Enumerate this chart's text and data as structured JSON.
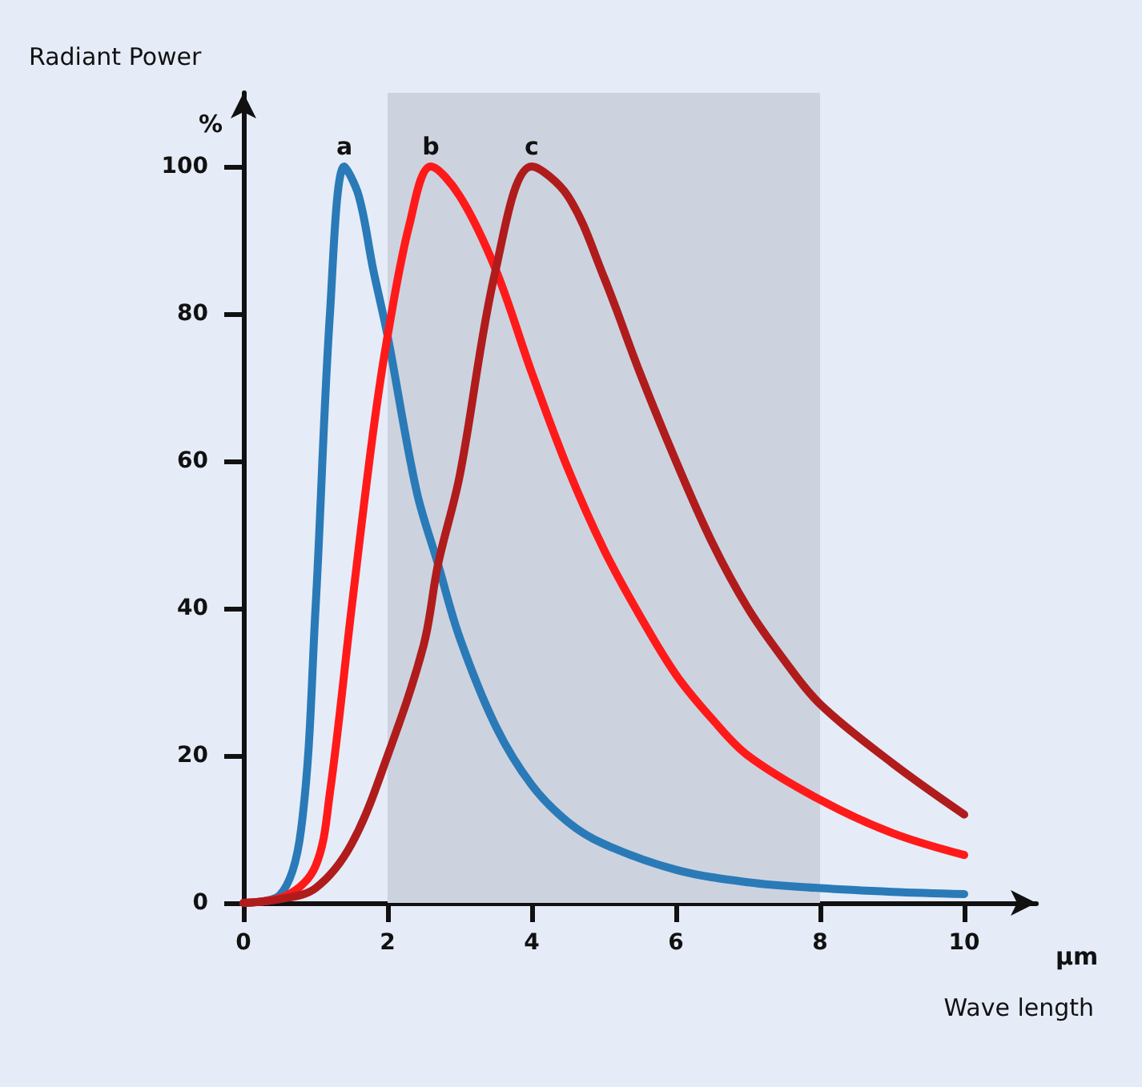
{
  "chart_data": {
    "type": "line",
    "ylabel": "Radiant Power",
    "xlabel": "Wave length",
    "annotations": [
      "%",
      "µm"
    ],
    "xlim": [
      0,
      11
    ],
    "xticks": [
      0,
      2,
      4,
      6,
      8,
      10
    ],
    "ylim": [
      0,
      110
    ],
    "yticks": [
      0,
      20,
      40,
      60,
      80,
      100
    ],
    "grid": false,
    "legend": false,
    "marker": "none",
    "line_style": "solid",
    "bands": [
      {
        "axis": "x",
        "from": 2,
        "to": 8,
        "color": "#ccd3df"
      }
    ],
    "series": [
      {
        "name": "a",
        "color": "#2a7ab8",
        "x": [
          0,
          0.5,
          0.8,
          1.0,
          1.2,
          1.4,
          1.6,
          1.8,
          2.0,
          2.4,
          2.7,
          3.0,
          3.5,
          4,
          4.5,
          5,
          6,
          7,
          8,
          9,
          10
        ],
        "values": [
          0,
          1,
          10,
          40,
          80,
          100,
          96,
          86,
          77,
          56,
          46,
          36,
          24,
          16,
          11,
          8,
          4.5,
          2.8,
          2,
          1.5,
          1.2
        ]
      },
      {
        "name": "b",
        "color": "#ff1a1a",
        "x": [
          0,
          0.6,
          1.0,
          1.2,
          1.5,
          1.8,
          2.0,
          2.3,
          2.6,
          3.0,
          3.5,
          4,
          4.5,
          5,
          5.5,
          6,
          6.5,
          7,
          8,
          9,
          10
        ],
        "values": [
          0,
          1,
          5,
          15,
          40,
          64,
          77,
          92,
          100,
          96,
          86,
          72,
          59,
          48,
          39,
          31,
          25,
          20,
          14,
          9.5,
          6.5
        ]
      },
      {
        "name": "c",
        "color": "#b01c1c",
        "x": [
          0,
          0.5,
          1,
          1.5,
          2,
          2.5,
          2.7,
          3,
          3.5,
          4,
          4.5,
          5,
          5.5,
          6,
          6.5,
          7,
          7.5,
          8,
          9,
          10
        ],
        "values": [
          0,
          0.5,
          2,
          8,
          20,
          35,
          46,
          58,
          86,
          100,
          96,
          85,
          72,
          60,
          49,
          40,
          33,
          27,
          19,
          12
        ]
      }
    ]
  }
}
